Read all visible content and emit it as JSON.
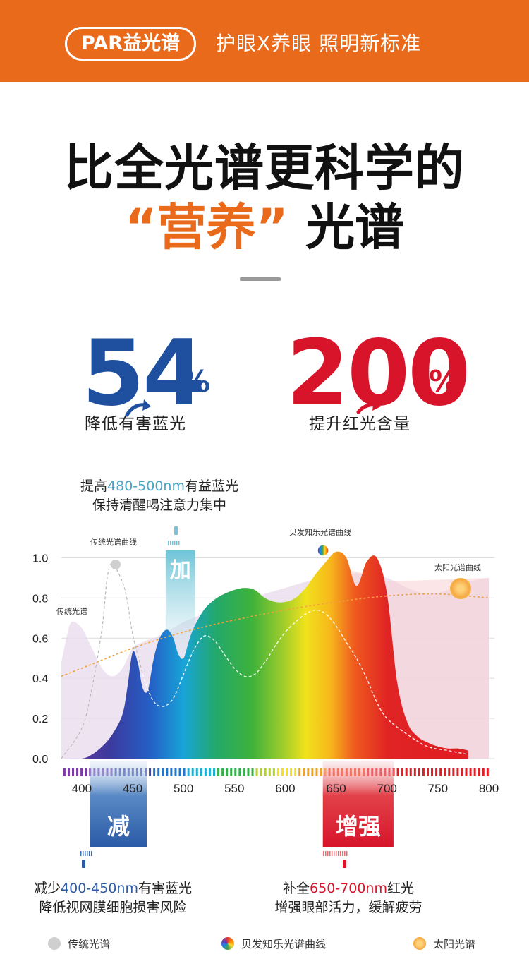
{
  "header": {
    "pill": "PAR益光谱",
    "tagline": "护眼X养眼 照明新标准"
  },
  "headline": {
    "line1": "比全光谱更科学的",
    "highlight": "“营养”",
    "rest": "光谱"
  },
  "stats": [
    {
      "value": "54",
      "unit": "%",
      "label": "降低有害蓝光",
      "color": "#1f4f9f"
    },
    {
      "value": "200",
      "unit": "%",
      "label": "提升红光含量",
      "color": "#d7142a"
    }
  ],
  "notes": {
    "top_pre": "提高",
    "top_range": "480-500nm",
    "top_post": "有益蓝光",
    "top_line2": "保持清醒喝注意力集中",
    "left_pre": "减少",
    "left_range": "400-450nm",
    "left_post": "有害蓝光",
    "left_line2": "降低视网膜细胞损害风险",
    "right_pre": "补全",
    "right_range": "650-700nm",
    "right_post": "红光",
    "right_line2": "增强眼部活力，缓解疲劳"
  },
  "chart_data": {
    "type": "area",
    "xlim": [
      380,
      800
    ],
    "ylim": [
      0,
      1.1
    ],
    "x_ticks": [
      400,
      450,
      500,
      550,
      600,
      650,
      700,
      750,
      800
    ],
    "y_ticks": [
      0.0,
      0.2,
      0.4,
      0.6,
      0.8,
      1.0
    ],
    "grid": true,
    "series": [
      {
        "name": "传统光谱",
        "style": "pale-area",
        "x": [
          380,
          385,
          390,
          400,
          410,
          420,
          430,
          440,
          450,
          460,
          470,
          480,
          490,
          500,
          520,
          540,
          560,
          580,
          600,
          620,
          640,
          660,
          680,
          700,
          720,
          740,
          760,
          780,
          800
        ],
        "y": [
          0.48,
          0.6,
          0.68,
          0.65,
          0.55,
          0.45,
          0.41,
          0.45,
          0.55,
          0.58,
          0.6,
          0.62,
          0.65,
          0.68,
          0.72,
          0.75,
          0.78,
          0.82,
          0.85,
          0.88,
          0.9,
          0.92,
          0.92,
          0.9,
          0.85,
          0.82,
          0.84,
          0.88,
          0.9
        ]
      },
      {
        "name": "贝发知乐光谱曲线",
        "style": "rainbow-area",
        "x": [
          380,
          400,
          410,
          420,
          430,
          440,
          445,
          450,
          455,
          460,
          465,
          470,
          475,
          480,
          485,
          490,
          495,
          500,
          505,
          510,
          520,
          530,
          540,
          550,
          560,
          570,
          580,
          590,
          600,
          610,
          620,
          630,
          640,
          650,
          660,
          670,
          680,
          690,
          700,
          710,
          720,
          730,
          740,
          750,
          760,
          770,
          780
        ],
        "y": [
          0,
          0,
          0.02,
          0.06,
          0.12,
          0.22,
          0.36,
          0.53,
          0.48,
          0.35,
          0.34,
          0.48,
          0.58,
          0.63,
          0.64,
          0.6,
          0.52,
          0.5,
          0.58,
          0.65,
          0.74,
          0.79,
          0.82,
          0.84,
          0.85,
          0.84,
          0.8,
          0.78,
          0.78,
          0.8,
          0.85,
          0.92,
          0.98,
          1.03,
          1.0,
          0.86,
          0.98,
          1.0,
          0.82,
          0.38,
          0.18,
          0.11,
          0.08,
          0.06,
          0.05,
          0.05,
          0.04
        ]
      },
      {
        "name": "传统光谱曲线",
        "style": "dashed-line",
        "x": [
          380,
          400,
          410,
          420,
          425,
          430,
          440,
          445,
          450,
          460,
          470,
          480,
          490,
          500,
          510,
          520,
          530,
          540,
          550,
          560,
          570,
          580,
          590,
          600,
          610,
          620,
          630,
          640,
          650,
          660,
          670,
          680,
          690,
          700,
          720,
          740,
          760,
          780
        ],
        "y": [
          0,
          0.15,
          0.35,
          0.65,
          0.9,
          0.97,
          0.88,
          0.78,
          0.62,
          0.42,
          0.29,
          0.26,
          0.3,
          0.42,
          0.54,
          0.61,
          0.59,
          0.52,
          0.45,
          0.41,
          0.42,
          0.48,
          0.56,
          0.63,
          0.68,
          0.72,
          0.74,
          0.72,
          0.66,
          0.58,
          0.5,
          0.4,
          0.28,
          0.2,
          0.12,
          0.06,
          0.04,
          0.02
        ]
      },
      {
        "name": "太阳光谱曲线",
        "style": "dotted-line",
        "x": [
          380,
          400,
          450,
          500,
          550,
          600,
          650,
          700,
          750,
          800
        ],
        "y": [
          0.41,
          0.45,
          0.55,
          0.63,
          0.69,
          0.74,
          0.78,
          0.81,
          0.82,
          0.8
        ]
      }
    ],
    "annotations": {
      "curve_label_traditional": "传统光谱曲线",
      "area_label_traditional": "传统光谱",
      "curve_label_brand": "贝发知乐光谱曲线",
      "curve_label_sun": "太阳光谱曲线",
      "band_add": "加",
      "band_reduce": "减",
      "band_enhance": "增强"
    },
    "bands": {
      "add": [
        470,
        510
      ],
      "reduce": [
        400,
        450
      ],
      "enhance": [
        630,
        705
      ]
    }
  },
  "legend": {
    "traditional": "传统光谱",
    "brand": "贝发知乐光谱曲线",
    "sun": "太阳光谱"
  }
}
